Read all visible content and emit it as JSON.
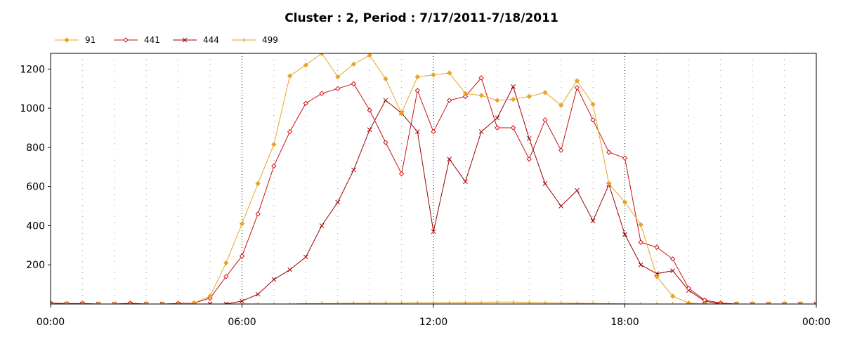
{
  "chart_data": {
    "type": "line",
    "title": "Cluster : 2, Period : 7/17/2011-7/18/2011",
    "xlabel": "",
    "ylabel": "",
    "x_unit": "hours",
    "x_ticks": [
      {
        "value": 0,
        "label": "00:00"
      },
      {
        "value": 6,
        "label": "06:00"
      },
      {
        "value": 12,
        "label": "12:00"
      },
      {
        "value": 18,
        "label": "18:00"
      },
      {
        "value": 24,
        "label": "00:00"
      }
    ],
    "y_ticks": [
      200,
      400,
      600,
      800,
      1000,
      1200
    ],
    "xlim": [
      0,
      24
    ],
    "ylim": [
      0,
      1280
    ],
    "legend_position": "top-left",
    "grid": "vertical-dotted",
    "x": [
      0,
      0.5,
      1,
      1.5,
      2,
      2.5,
      3,
      3.5,
      4,
      4.5,
      5,
      5.5,
      6,
      6.5,
      7,
      7.5,
      8,
      8.5,
      9,
      9.5,
      10,
      10.5,
      11,
      11.5,
      12,
      12.5,
      13,
      13.5,
      14,
      14.5,
      15,
      15.5,
      16,
      16.5,
      17,
      17.5,
      18,
      18.5,
      19,
      19.5,
      20,
      20.5,
      21,
      21.5,
      22,
      22.5,
      23,
      23.5,
      24
    ],
    "series": [
      {
        "name": "91",
        "color": "#e8a427",
        "marker": "diamond",
        "values": [
          0,
          0,
          0,
          0,
          0,
          0,
          0,
          0,
          0,
          5,
          40,
          210,
          410,
          615,
          815,
          1165,
          1220,
          1280,
          1160,
          1225,
          1270,
          1150,
          975,
          1160,
          1170,
          1180,
          1075,
          1065,
          1040,
          1045,
          1060,
          1080,
          1015,
          1140,
          1020,
          615,
          520,
          405,
          140,
          40,
          5,
          0,
          0,
          0,
          0,
          0,
          0,
          0,
          0
        ]
      },
      {
        "name": "441",
        "color": "#cc1010",
        "marker": "diamond-open",
        "values": [
          5,
          2,
          3,
          0,
          0,
          4,
          0,
          0,
          3,
          5,
          30,
          140,
          245,
          460,
          705,
          880,
          1025,
          1075,
          1100,
          1125,
          990,
          825,
          665,
          1090,
          880,
          1040,
          1060,
          1155,
          900,
          900,
          740,
          940,
          785,
          1105,
          940,
          775,
          745,
          315,
          290,
          230,
          80,
          20,
          5,
          0,
          0,
          0,
          0,
          0,
          0
        ]
      },
      {
        "name": "444",
        "color": "#990000",
        "marker": "cross",
        "values": [
          0,
          0,
          0,
          0,
          0,
          0,
          0,
          0,
          0,
          0,
          0,
          0,
          15,
          50,
          125,
          175,
          240,
          400,
          520,
          685,
          890,
          1040,
          975,
          880,
          370,
          740,
          625,
          880,
          950,
          1110,
          845,
          615,
          500,
          580,
          425,
          610,
          355,
          200,
          155,
          170,
          70,
          15,
          0,
          0,
          0,
          0,
          0,
          0,
          0
        ]
      },
      {
        "name": "499",
        "color": "#e0a020",
        "marker": "plus",
        "values": [
          0,
          0,
          0,
          0,
          0,
          0,
          0,
          0,
          0,
          0,
          0,
          0,
          0,
          0,
          0,
          0,
          2,
          3,
          3,
          4,
          4,
          5,
          5,
          6,
          6,
          7,
          8,
          9,
          10,
          10,
          8,
          6,
          5,
          4,
          3,
          2,
          1,
          0,
          0,
          0,
          0,
          0,
          0,
          0,
          0,
          0,
          0,
          0,
          0
        ]
      }
    ]
  }
}
